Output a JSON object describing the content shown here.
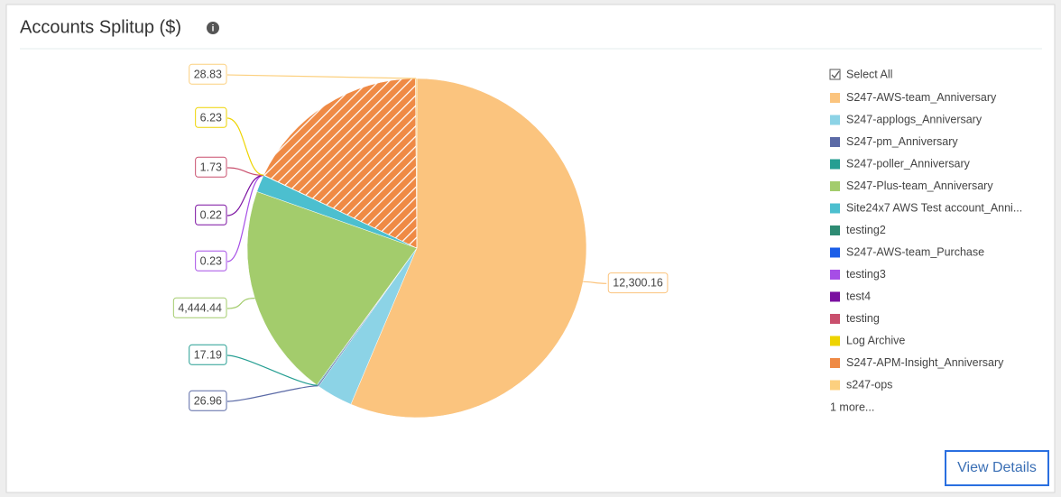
{
  "header": {
    "title": "Accounts Splitup ($)"
  },
  "chart_data": {
    "type": "pie",
    "categories": [
      "S247-AWS-team_Anniversary",
      "S247-applogs_Anniversary",
      "S247-pm_Anniversary",
      "S247-poller_Anniversary",
      "S247-Plus-team_Anniversary",
      "Site24x7 AWS Test account_Anni...",
      "testing2",
      "S247-AWS-team_Purchase",
      "testing3",
      "test4",
      "testing",
      "Log Archive",
      "S247-APM-Insight_Anniversary",
      "s247-ops"
    ],
    "colors": [
      "#fbc47e",
      "#8cd3e6",
      "#5b6aa6",
      "#259e92",
      "#a3cc6c",
      "#4cbfcf",
      "#2e8b73",
      "#1b5ee8",
      "#a64ee6",
      "#7a0fa0",
      "#c94f6d",
      "#eed400",
      "#ef8a45",
      "#fcd07f"
    ],
    "values": [
      12300.16,
      760,
      26.96,
      17.19,
      4444.44,
      360,
      0,
      0,
      0.23,
      0.22,
      1.73,
      6.23,
      3880,
      28.83
    ],
    "value_labels": [
      "12,300.16",
      null,
      "26.96",
      "17.19",
      "4,444.44",
      null,
      null,
      null,
      "0.23",
      "0.22",
      "1.73",
      "6.23",
      null,
      "28.83"
    ],
    "patterns": [
      null,
      null,
      null,
      null,
      null,
      null,
      null,
      null,
      null,
      null,
      null,
      null,
      "hatch",
      null
    ],
    "legend": {
      "select_all": "Select All",
      "more": "1 more..."
    }
  },
  "footer": {
    "button": "View Details"
  }
}
